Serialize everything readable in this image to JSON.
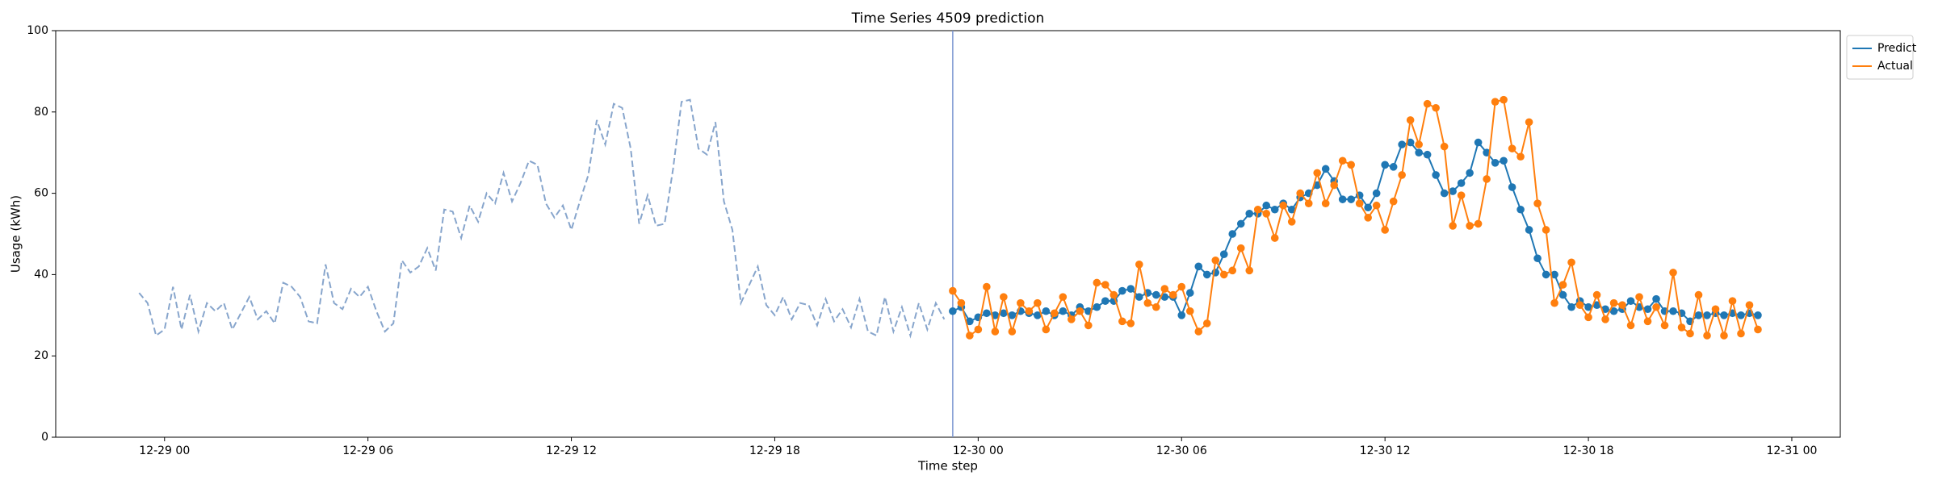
{
  "chart_data": {
    "type": "line",
    "title": "Time Series 4509 prediction",
    "x_label": "Time step",
    "y_label": "Usage (kWh)",
    "xlim": [
      -3.21,
      49.43
    ],
    "xticks": [
      {
        "value": 0,
        "label": "12-29 00"
      },
      {
        "value": 6,
        "label": "12-29 06"
      },
      {
        "value": 12,
        "label": "12-29 12"
      },
      {
        "value": 18,
        "label": "12-29 18"
      },
      {
        "value": 24,
        "label": "12-30 00"
      },
      {
        "value": 30,
        "label": "12-30 06"
      },
      {
        "value": 36,
        "label": "12-30 12"
      },
      {
        "value": 42,
        "label": "12-30 18"
      },
      {
        "value": 48,
        "label": "12-31 00"
      }
    ],
    "ylim": [
      0,
      100
    ],
    "yticks": [
      0,
      20,
      40,
      60,
      80,
      100
    ],
    "vline_x": 23.25,
    "vline_color": "#7b96d0",
    "legend": "upper right outside",
    "series": [
      {
        "color": "#87a5cc",
        "style": "dashed",
        "markers": false,
        "x": [
          -0.75,
          -0.5,
          -0.25,
          0,
          0.25,
          0.5,
          0.75,
          1,
          1.25,
          1.5,
          1.75,
          2,
          2.25,
          2.5,
          2.75,
          3,
          3.25,
          3.5,
          3.75,
          4,
          4.25,
          4.5,
          4.75,
          5,
          5.25,
          5.5,
          5.75,
          6,
          6.25,
          6.5,
          6.75,
          7,
          7.25,
          7.5,
          7.75,
          8,
          8.25,
          8.5,
          8.75,
          9,
          9.25,
          9.5,
          9.75,
          10,
          10.25,
          10.5,
          10.75,
          11,
          11.25,
          11.5,
          11.75,
          12,
          12.25,
          12.5,
          12.75,
          13,
          13.25,
          13.5,
          13.75,
          14,
          14.25,
          14.5,
          14.75,
          15,
          15.25,
          15.5,
          15.75,
          16,
          16.25,
          16.5,
          16.75,
          17,
          17.25,
          17.5,
          17.75,
          18,
          18.25,
          18.5,
          18.75,
          19,
          19.25,
          19.5,
          19.75,
          20,
          20.25,
          20.5,
          20.75,
          21,
          21.25,
          21.5,
          21.75,
          22,
          22.25,
          22.5,
          22.75,
          23
        ],
        "values": [
          35.5,
          33,
          25,
          26.5,
          37,
          26.5,
          35,
          26,
          33,
          31,
          33,
          26.5,
          30.5,
          34.5,
          29,
          31,
          28,
          38,
          37,
          34.5,
          28.5,
          28,
          42.5,
          33,
          31.5,
          36.5,
          34.5,
          37,
          31,
          26,
          28,
          43.5,
          40.5,
          42,
          46.5,
          41,
          56,
          55.5,
          49,
          57,
          53,
          60,
          57.5,
          65,
          58,
          62.5,
          68,
          67,
          57.5,
          54,
          57,
          51,
          58,
          64.5,
          78,
          72,
          82,
          81,
          71,
          52.5,
          59.5,
          52,
          52.5,
          66,
          82.5,
          83,
          71,
          69.5,
          77.5,
          58,
          51,
          33,
          37.5,
          42,
          32.5,
          30,
          34.5,
          29,
          33,
          32.5,
          27.5,
          34,
          28.5,
          31.5,
          27,
          34,
          26,
          25,
          34.5,
          26,
          32,
          25,
          33,
          26.5,
          33,
          29
        ]
      },
      {
        "name": "Predict",
        "color": "#1f77b4",
        "style": "solid",
        "markers": true,
        "x": [
          23.25,
          23.5,
          23.75,
          24,
          24.25,
          24.5,
          24.75,
          25,
          25.25,
          25.5,
          25.75,
          26,
          26.25,
          26.5,
          26.75,
          27,
          27.25,
          27.5,
          27.75,
          28,
          28.25,
          28.5,
          28.75,
          29,
          29.25,
          29.5,
          29.75,
          30,
          30.25,
          30.5,
          30.75,
          31,
          31.25,
          31.5,
          31.75,
          32,
          32.25,
          32.5,
          32.75,
          33,
          33.25,
          33.5,
          33.75,
          34,
          34.25,
          34.5,
          34.75,
          35,
          35.25,
          35.5,
          35.75,
          36,
          36.25,
          36.5,
          36.75,
          37,
          37.25,
          37.5,
          37.75,
          38,
          38.25,
          38.5,
          38.75,
          39,
          39.25,
          39.5,
          39.75,
          40,
          40.25,
          40.5,
          40.75,
          41,
          41.25,
          41.5,
          41.75,
          42,
          42.25,
          42.5,
          42.75,
          43,
          43.25,
          43.5,
          43.75,
          44,
          44.25,
          44.5,
          44.75,
          45,
          45.25,
          45.5,
          45.75,
          46,
          46.25,
          46.5,
          46.75,
          47
        ],
        "values": [
          31,
          32,
          28.5,
          29.5,
          30.5,
          30,
          30.5,
          30,
          31,
          30.5,
          30,
          31,
          30,
          31,
          30,
          32,
          31,
          32,
          33.5,
          33.5,
          36,
          36.5,
          34.5,
          35.5,
          35,
          34.5,
          34.5,
          30,
          35.5,
          42,
          40,
          40.5,
          45,
          50,
          52.5,
          55,
          55,
          57,
          56,
          57.5,
          56,
          59,
          60,
          62,
          66,
          63,
          58.5,
          58.5,
          59.5,
          56.5,
          60,
          67,
          66.5,
          72,
          72.5,
          70,
          69.5,
          64.5,
          60,
          60.5,
          62.5,
          65,
          72.5,
          70,
          67.5,
          68,
          61.5,
          56,
          51,
          44,
          40,
          40,
          35,
          32,
          33.5,
          32,
          32.5,
          31.5,
          31,
          31.5,
          33.5,
          32,
          31.5,
          34,
          31,
          31,
          30.5,
          28.5,
          30,
          30,
          30.5,
          30,
          30.5,
          30,
          30.5,
          30
        ]
      },
      {
        "name": "Actual",
        "color": "#ff7f0e",
        "style": "solid",
        "markers": true,
        "x": [
          23.25,
          23.5,
          23.75,
          24,
          24.25,
          24.5,
          24.75,
          25,
          25.25,
          25.5,
          25.75,
          26,
          26.25,
          26.5,
          26.75,
          27,
          27.25,
          27.5,
          27.75,
          28,
          28.25,
          28.5,
          28.75,
          29,
          29.25,
          29.5,
          29.75,
          30,
          30.25,
          30.5,
          30.75,
          31,
          31.25,
          31.5,
          31.75,
          32,
          32.25,
          32.5,
          32.75,
          33,
          33.25,
          33.5,
          33.75,
          34,
          34.25,
          34.5,
          34.75,
          35,
          35.25,
          35.5,
          35.75,
          36,
          36.25,
          36.5,
          36.75,
          37,
          37.25,
          37.5,
          37.75,
          38,
          38.25,
          38.5,
          38.75,
          39,
          39.25,
          39.5,
          39.75,
          40,
          40.25,
          40.5,
          40.75,
          41,
          41.25,
          41.5,
          41.75,
          42,
          42.25,
          42.5,
          42.75,
          43,
          43.25,
          43.5,
          43.75,
          44,
          44.25,
          44.5,
          44.75,
          45,
          45.25,
          45.5,
          45.75,
          46,
          46.25,
          46.5,
          46.75,
          47
        ],
        "values": [
          36,
          33,
          25,
          26.5,
          37,
          26,
          34.5,
          26,
          33,
          31,
          33,
          26.5,
          30.5,
          34.5,
          29,
          31,
          27.5,
          38,
          37.5,
          35,
          28.5,
          28,
          42.5,
          33,
          32,
          36.5,
          35,
          37,
          31,
          26,
          28,
          43.5,
          40,
          41,
          46.5,
          41,
          56,
          55,
          49,
          57,
          53,
          60,
          57.5,
          65,
          57.5,
          62,
          68,
          67,
          57.5,
          54,
          57,
          51,
          58,
          64.5,
          78,
          72,
          82,
          81,
          71.5,
          52,
          59.5,
          52,
          52.5,
          63.5,
          82.5,
          83,
          71,
          69,
          77.5,
          57.5,
          51,
          33,
          37.5,
          43,
          32.5,
          29.5,
          35,
          29,
          33,
          32.5,
          27.5,
          34.5,
          28.5,
          32,
          27.5,
          40.5,
          27,
          25.5,
          35,
          25,
          31.5,
          25,
          33.5,
          25.5,
          32.5,
          26.5
        ]
      }
    ]
  }
}
